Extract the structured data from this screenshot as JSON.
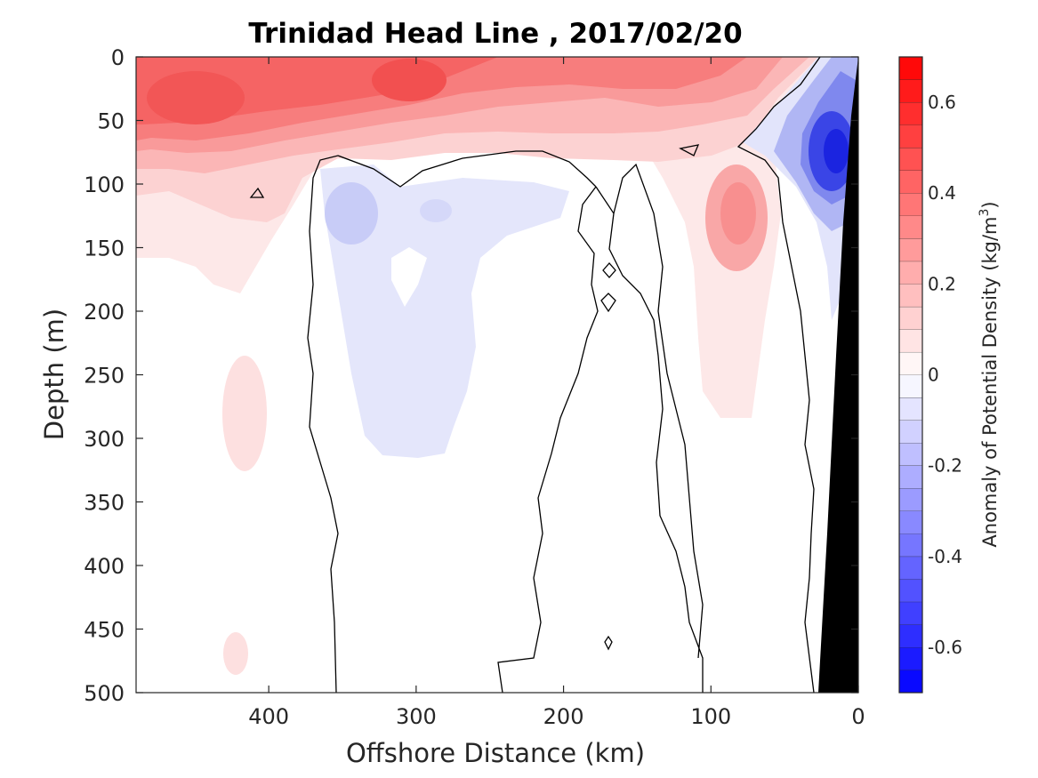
{
  "chart_data": {
    "type": "contour",
    "title": "Trinidad Head Line , 2017/02/20",
    "xlabel": "Offshore Distance (km)",
    "ylabel": "Depth (m)",
    "xlim": [
      490,
      0
    ],
    "x_reversed": true,
    "ylim": [
      0,
      500
    ],
    "y_reversed": true,
    "x_ticks": [
      "400",
      "300",
      "200",
      "100",
      "0"
    ],
    "x_tick_values": [
      400,
      300,
      200,
      100,
      0
    ],
    "y_ticks": [
      "0",
      "50",
      "100",
      "150",
      "200",
      "250",
      "300",
      "350",
      "400",
      "450",
      "500"
    ],
    "y_tick_values": [
      0,
      50,
      100,
      150,
      200,
      250,
      300,
      350,
      400,
      450,
      500
    ],
    "colorbar": {
      "label_prefix": "Anomaly of Potential Density (kg/m",
      "label_sup": "3",
      "label_suffix": ")",
      "range": [
        -0.7,
        0.7
      ],
      "levels_step": 0.05,
      "ticks": [
        "0.6",
        "0.4",
        "0.2",
        "0",
        "-0.2",
        "-0.4",
        "-0.6"
      ],
      "tick_values": [
        0.6,
        0.4,
        0.2,
        0,
        -0.2,
        -0.4,
        -0.6
      ],
      "colormap": "blue-white-red",
      "positive_color": "#ff0000",
      "negative_color": "#0000ff",
      "zero_color": "#ffffff"
    },
    "regions": [
      {
        "description": "near-surface positive anomaly band",
        "x_range": [
          490,
          30
        ],
        "depth_range": [
          0,
          150
        ],
        "value": 0.35
      },
      {
        "description": "surface maximum near 300 km",
        "x": 300,
        "depth": 20,
        "value": 0.55
      },
      {
        "description": "surface maximum near 450 km",
        "x": 450,
        "depth": 50,
        "value": 0.5
      },
      {
        "description": "negative anomaly core near shelf",
        "x": 15,
        "depth": 75,
        "value": -0.6
      },
      {
        "description": "weak negative region",
        "x_range": [
          370,
          230
        ],
        "depth_range": [
          80,
          310
        ],
        "value": -0.05
      },
      {
        "description": "subsurface positive near 80 km",
        "x": 75,
        "depth": 130,
        "value": 0.2
      },
      {
        "description": "weak positive patch near 410 km",
        "x_range": [
          430,
          390
        ],
        "depth_range": [
          230,
          330
        ],
        "value": 0.05
      }
    ],
    "zero_contours": 4,
    "bathymetry_color": "#000000",
    "grid": false
  }
}
